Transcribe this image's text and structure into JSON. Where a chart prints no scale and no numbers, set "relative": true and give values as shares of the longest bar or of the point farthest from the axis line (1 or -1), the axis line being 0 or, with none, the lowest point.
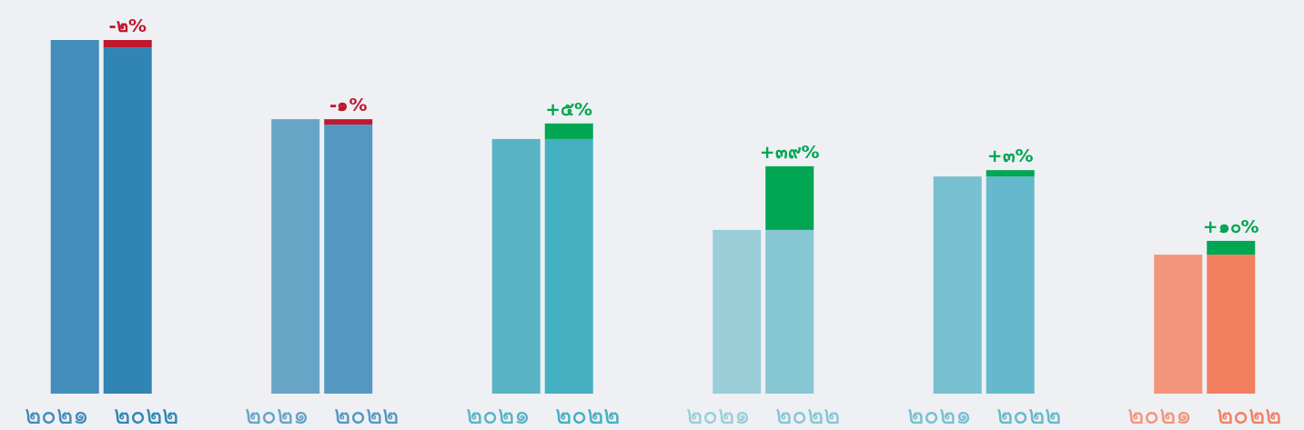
{
  "chart_data": {
    "type": "bar",
    "relative": true,
    "stacked": true,
    "categories": [
      "๒๐๒๑",
      "๒๐๒๒",
      "๒๐๒๑",
      "๒๐๒๒",
      "๒๐๒๑",
      "๒๐๒๒",
      "๒๐๒๑",
      "๒๐๒๒",
      "๒๐๒๑",
      "๒๐๒๒",
      "๒๐๒๑",
      "๒๐๒๒"
    ],
    "series": [
      {
        "values": [
          1.0,
          0.979,
          0.776,
          0.761,
          0.72,
          0.72,
          0.463,
          0.463,
          0.614,
          0.614,
          0.393,
          0.393
        ],
        "colors": [
          "#428dba",
          "#3185b5",
          "#67a4c6",
          "#5498c2",
          "#58b4c4",
          "#45afc2",
          "#99ced9",
          "#87c6d3",
          "#77c0cf",
          "#66b9cc",
          "#f2957a",
          "#f27e60"
        ]
      },
      {
        "values": [
          null,
          0.021,
          null,
          0.015,
          null,
          0.044,
          null,
          0.18,
          null,
          0.018,
          null,
          0.039
        ],
        "colors": [
          null,
          "#c0182f",
          null,
          "#c0182f",
          null,
          "#00a651",
          null,
          "#00a651",
          null,
          "#00a651",
          null,
          "#00a651"
        ]
      }
    ],
    "annotations": [
      "-๒%",
      "-๑%",
      "+๕%",
      "+๓๙%",
      "+๓%",
      "+๑๐%"
    ]
  }
}
